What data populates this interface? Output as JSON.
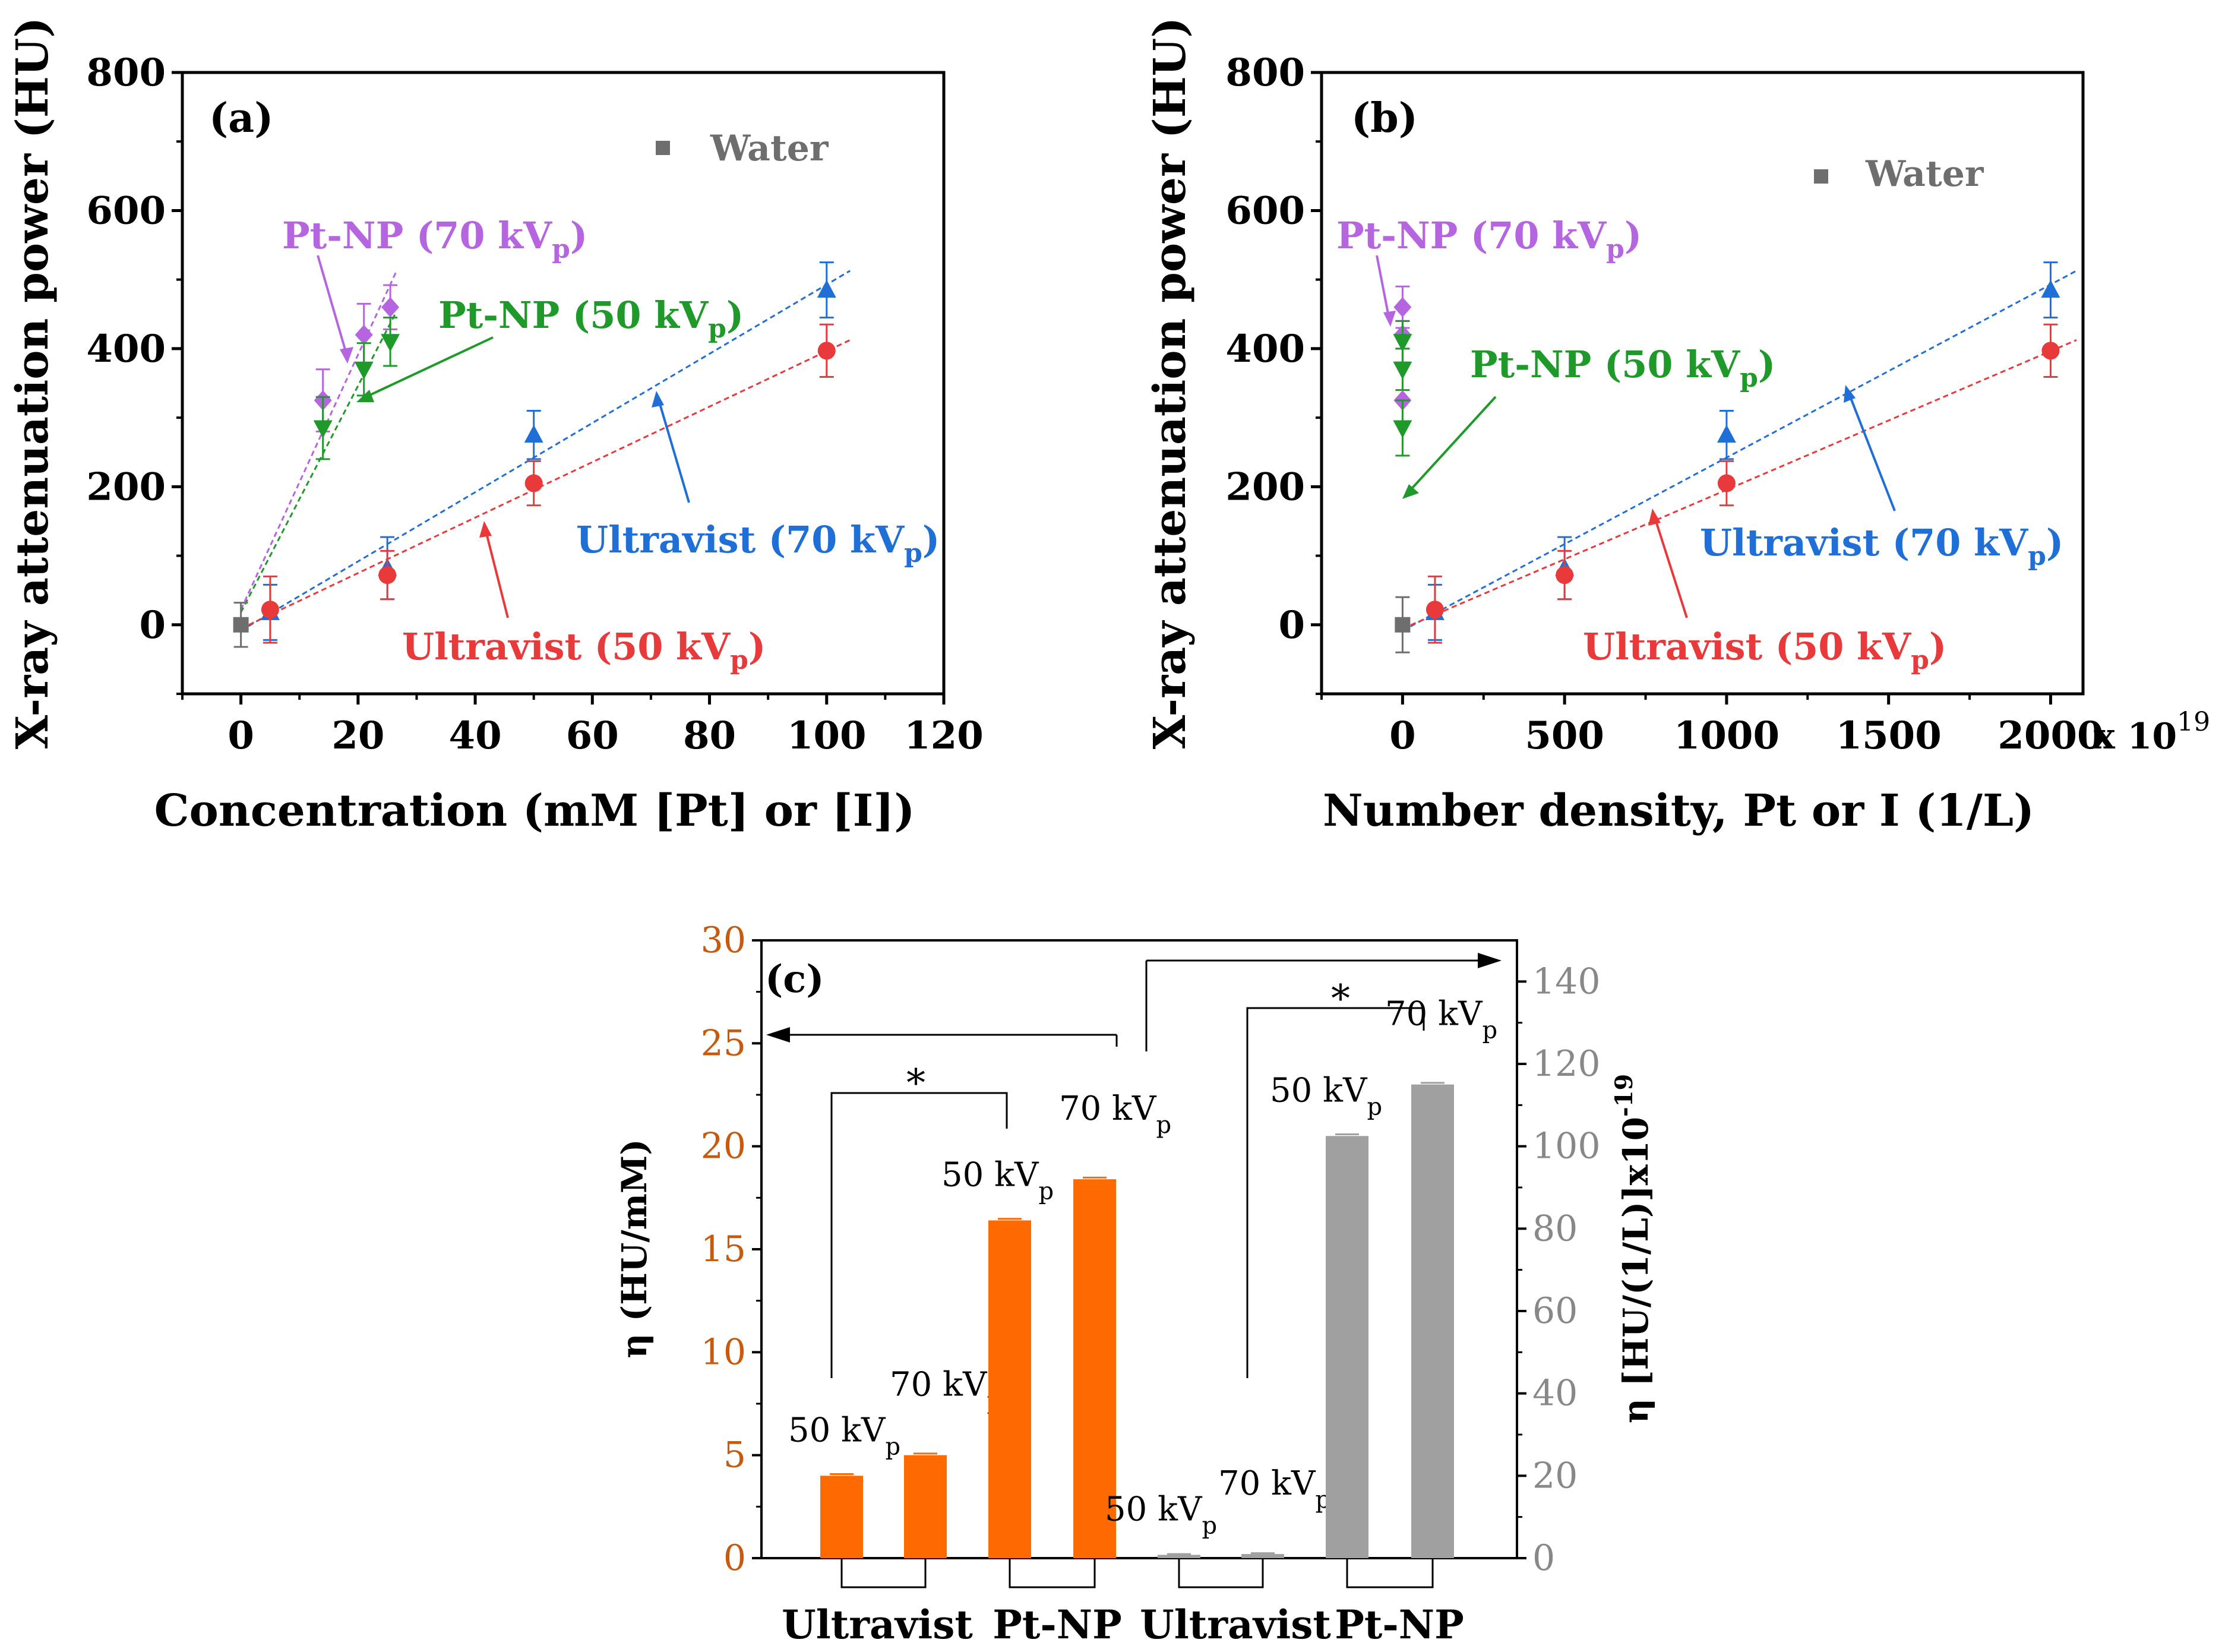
{
  "colors": {
    "water": "#6e6e6e",
    "pt70": "#b565e0",
    "pt50": "#1f9a2a",
    "ultra70": "#1f6fd6",
    "ultra50": "#e83a3a",
    "bar_orange": "#ff6a00",
    "bar_gray": "#a0a0a0",
    "left_axis_c": "#c65a0e",
    "right_axis_c": "#888888"
  },
  "chart_data": [
    {
      "id": "a",
      "type": "scatter",
      "panel_label": "(a)",
      "xlabel": "Concentration (mM [Pt] or [I])",
      "ylabel": "X-ray attenuation power (HU)",
      "xlim": [
        -10,
        120
      ],
      "ylim": [
        -100,
        800
      ],
      "xticks": [
        "0",
        "20",
        "40",
        "60",
        "80",
        "100",
        "120"
      ],
      "yticks": [
        "0",
        "200",
        "400",
        "600",
        "800"
      ],
      "legend": "Water",
      "series": [
        {
          "name": "Water",
          "key": "water",
          "marker": "square",
          "x": [
            0
          ],
          "y": [
            0
          ],
          "err": [
            32
          ],
          "fit": false
        },
        {
          "name": "Pt-NP (70 kVp)",
          "key": "pt70",
          "marker": "diamond",
          "x": [
            14,
            21,
            25.5
          ],
          "y": [
            325,
            420,
            460
          ],
          "err": [
            45,
            45,
            32
          ],
          "fit": true
        },
        {
          "name": "Pt-NP (50 kVp)",
          "key": "pt50",
          "marker": "tri-down",
          "x": [
            14,
            21,
            25.5
          ],
          "y": [
            285,
            370,
            410
          ],
          "err": [
            45,
            38,
            35
          ],
          "fit": true
        },
        {
          "name": "Ultravist (70 kVp)",
          "key": "ultra70",
          "marker": "tri-up",
          "x": [
            5,
            25,
            50,
            100
          ],
          "y": [
            18,
            82,
            275,
            485
          ],
          "err": [
            40,
            45,
            35,
            40
          ],
          "fit": true
        },
        {
          "name": "Ultravist (50 kVp)",
          "key": "ultra50",
          "marker": "circle",
          "x": [
            5,
            25,
            50,
            100
          ],
          "y": [
            22,
            72,
            205,
            397
          ],
          "err": [
            48,
            35,
            32,
            38
          ],
          "fit": true
        }
      ],
      "annotations": [
        {
          "main": "Pt-NP (70 kV",
          "sub": "p",
          "tail": ")",
          "key": "pt70"
        },
        {
          "main": "Pt-NP (50 kV",
          "sub": "p",
          "tail": ")",
          "key": "pt50"
        },
        {
          "main": "Ultravist (70 kV",
          "sub": "p",
          "tail": ")",
          "key": "ultra70"
        },
        {
          "main": "Ultravist (50 kV",
          "sub": "p",
          "tail": ")",
          "key": "ultra50"
        }
      ]
    },
    {
      "id": "b",
      "type": "scatter",
      "panel_label": "(b)",
      "xlabel": "Number density, Pt or I (1/L)",
      "ylabel": "X-ray attenuation power (HU)",
      "xlim": [
        -250,
        2100
      ],
      "ylim": [
        -100,
        800
      ],
      "xticks": [
        "0",
        "500",
        "1000",
        "1500",
        "2000"
      ],
      "yticks": [
        "0",
        "200",
        "400",
        "600",
        "800"
      ],
      "x_multiplier": "x 10",
      "x_multiplier_exp": "19",
      "legend": "Water",
      "series": [
        {
          "name": "Water",
          "key": "water",
          "marker": "square",
          "x": [
            0
          ],
          "y": [
            0
          ],
          "err": [
            40
          ],
          "fit": false
        },
        {
          "name": "Pt-NP (70 kVp)",
          "key": "pt70",
          "marker": "diamond",
          "x": [
            0,
            0,
            0
          ],
          "y": [
            325,
            420,
            460
          ],
          "err": [
            0,
            20,
            30
          ],
          "fit": false
        },
        {
          "name": "Pt-NP (50 kVp)",
          "key": "pt50",
          "marker": "tri-down",
          "x": [
            0,
            0,
            0
          ],
          "y": [
            285,
            370,
            410
          ],
          "err": [
            40,
            30,
            30
          ],
          "fit": false
        },
        {
          "name": "Ultravist (70 kVp)",
          "key": "ultra70",
          "marker": "tri-up",
          "x": [
            100,
            500,
            1000,
            2000
          ],
          "y": [
            18,
            82,
            275,
            485
          ],
          "err": [
            40,
            45,
            35,
            40
          ],
          "fit": true
        },
        {
          "name": "Ultravist (50 kVp)",
          "key": "ultra50",
          "marker": "circle",
          "x": [
            100,
            500,
            1000,
            2000
          ],
          "y": [
            22,
            72,
            205,
            397
          ],
          "err": [
            48,
            35,
            32,
            38
          ],
          "fit": true
        }
      ],
      "annotations": [
        {
          "main": "Pt-NP (70 kV",
          "sub": "p",
          "tail": ")",
          "key": "pt70"
        },
        {
          "main": "Pt-NP (50 kV",
          "sub": "p",
          "tail": ")",
          "key": "pt50"
        },
        {
          "main": "Ultravist (70 kV",
          "sub": "p",
          "tail": ")",
          "key": "ultra70"
        },
        {
          "main": "Ultravist (50 kV",
          "sub": "p",
          "tail": ")",
          "key": "ultra50"
        }
      ]
    },
    {
      "id": "c",
      "type": "bar",
      "panel_label": "(c)",
      "ylabel_left": "η (HU/mM)",
      "ylabel_right_main": "η [HU/(1/L)]x10",
      "ylabel_right_exp": "-19",
      "ylim_left": [
        0,
        30
      ],
      "ylim_right": [
        0,
        150
      ],
      "yticks_left": [
        "0",
        "5",
        "10",
        "15",
        "20",
        "25",
        "30"
      ],
      "yticks_right": [
        "0",
        "20",
        "40",
        "60",
        "80",
        "100",
        "120",
        "140"
      ],
      "significance": "*",
      "groups": [
        "Ultravist",
        "Pt-NP",
        "Ultravist",
        "Pt-NP"
      ],
      "bars": [
        {
          "group": "Ultravist",
          "label": "50 kV",
          "sub": "p",
          "axis": "left",
          "value": 4.0,
          "err": 0.08
        },
        {
          "group": "Ultravist",
          "label": "70 kV",
          "sub": "p",
          "axis": "left",
          "value": 5.0,
          "err": 0.08
        },
        {
          "group": "Pt-NP",
          "label": "50 kV",
          "sub": "p",
          "axis": "left",
          "value": 16.4,
          "err": 0.08
        },
        {
          "group": "Pt-NP",
          "label": "70 kV",
          "sub": "p",
          "axis": "left",
          "value": 18.4,
          "err": 0.08
        },
        {
          "group": "Ultravist",
          "label": "50 kV",
          "sub": "p",
          "axis": "right",
          "value": 0.8,
          "err": 0.2
        },
        {
          "group": "Ultravist",
          "label": "70 kV",
          "sub": "p",
          "axis": "right",
          "value": 1.0,
          "err": 0.2
        },
        {
          "group": "Pt-NP",
          "label": "50 kV",
          "sub": "p",
          "axis": "right",
          "value": 102.5,
          "err": 0.4
        },
        {
          "group": "Pt-NP",
          "label": "70 kV",
          "sub": "p",
          "axis": "right",
          "value": 115.0,
          "err": 0.4
        }
      ]
    }
  ]
}
